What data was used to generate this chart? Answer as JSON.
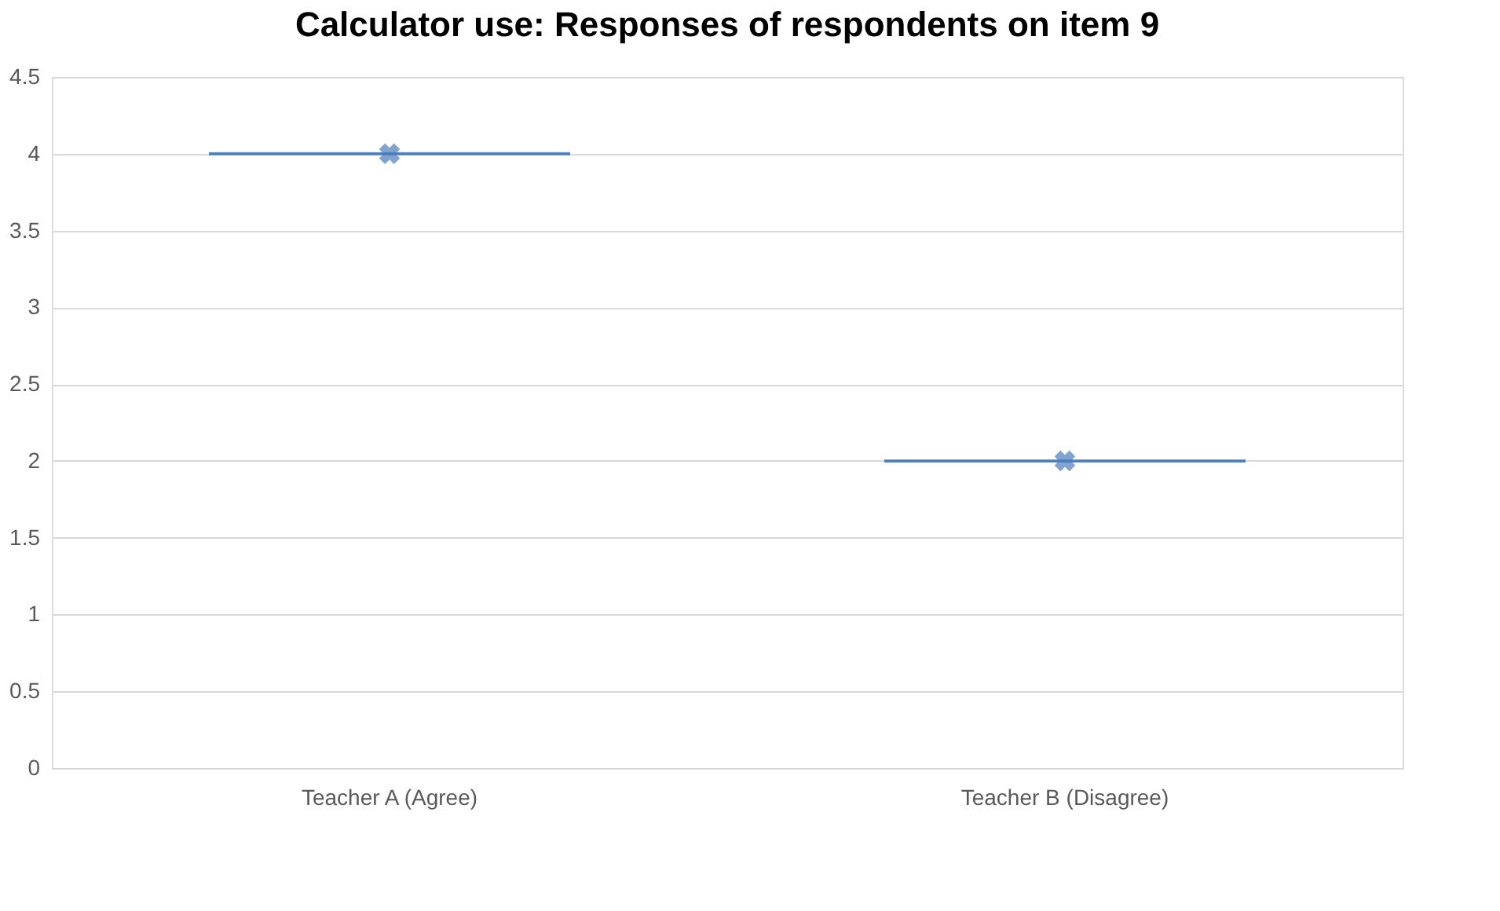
{
  "chart_data": {
    "type": "box",
    "title": "Calculator use: Responses of respondents on item 9",
    "categories": [
      "Teacher A  (Agree)",
      "Teacher B (Disagree)"
    ],
    "boxes": [
      {
        "low": 4,
        "q1": 4,
        "median": 4,
        "q3": 4,
        "high": 4,
        "mean": 4
      },
      {
        "low": 2,
        "q1": 2,
        "median": 2,
        "q3": 2,
        "high": 2,
        "mean": 2
      }
    ],
    "color": "#4a7ebb",
    "ylim": [
      0,
      4.5
    ],
    "yticks": [
      0,
      0.5,
      1,
      1.5,
      2,
      2.5,
      3,
      3.5,
      4,
      4.5
    ],
    "grid": "y"
  }
}
